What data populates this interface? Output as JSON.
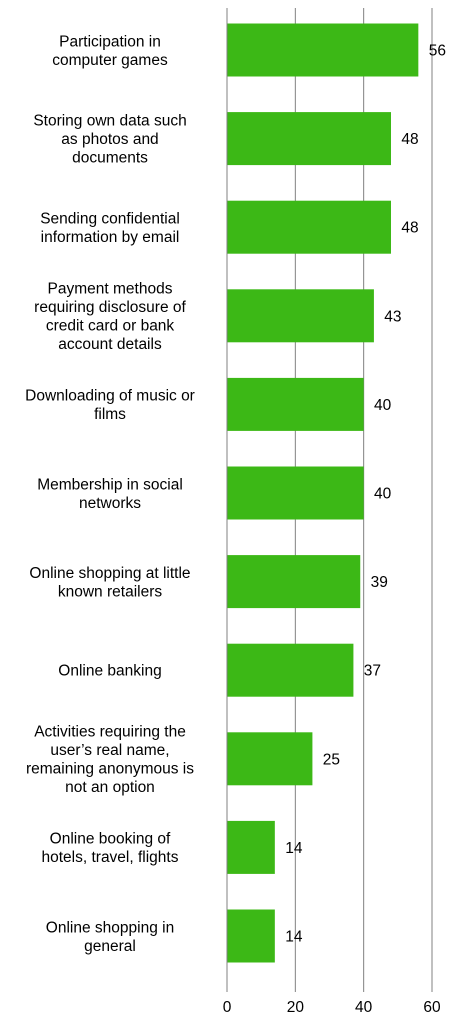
{
  "chart_data": {
    "type": "bar",
    "orientation": "horizontal",
    "title": "",
    "xlabel": "",
    "ylabel": "",
    "categories": [
      [
        "Participation in",
        "computer games"
      ],
      [
        "Storing own data such",
        "as photos and",
        "documents"
      ],
      [
        "Sending confidential",
        "information by email"
      ],
      [
        "Payment methods",
        "requiring disclosure of",
        "credit card or bank",
        "account details"
      ],
      [
        "Downloading of music or",
        "films"
      ],
      [
        "Membership in social",
        "networks"
      ],
      [
        "Online shopping at little",
        "known retailers"
      ],
      [
        "Online banking"
      ],
      [
        "Activities requiring the",
        "user’s real name,",
        "remaining anonymous is",
        "not an option"
      ],
      [
        "Online booking of",
        "hotels, travel, flights"
      ],
      [
        "Online shopping in",
        "general"
      ]
    ],
    "values": [
      56,
      48,
      48,
      43,
      40,
      40,
      39,
      37,
      25,
      14,
      14
    ],
    "value_labels": [
      "56",
      "48",
      "48",
      "43",
      "40",
      "40",
      "39",
      "37",
      "25",
      "14",
      "14"
    ],
    "xlim": [
      0,
      60
    ],
    "xticks": [
      0,
      20,
      40,
      60
    ],
    "xtick_labels": [
      "0",
      "20",
      "40",
      "60"
    ],
    "grid": "vertical gridlines at 20, 40, 60",
    "legend": "none",
    "colors": {
      "bar": "#3cb816",
      "gridline": "#808080",
      "axis": "#808080",
      "text": "#000000"
    }
  }
}
